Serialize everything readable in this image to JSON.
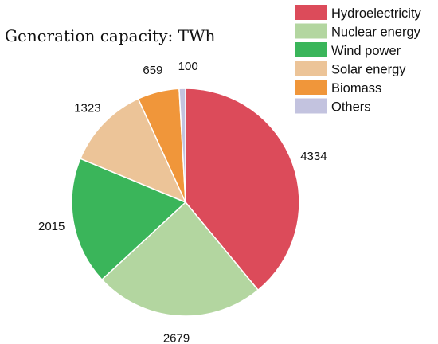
{
  "chart_data": {
    "type": "pie",
    "title": "Generation capacity: TWh",
    "slices": [
      {
        "label": "Hydroelectricity",
        "value": 4334,
        "color": "#dc4b5a"
      },
      {
        "label": "Nuclear energy",
        "value": 2679,
        "color": "#b3d6a0"
      },
      {
        "label": "Wind power",
        "value": 2015,
        "color": "#3ab55a"
      },
      {
        "label": "Solar energy",
        "value": 1323,
        "color": "#ecc498"
      },
      {
        "label": "Biomass",
        "value": 659,
        "color": "#f0963a"
      },
      {
        "label": "Others",
        "value": 100,
        "color": "#c3c3df"
      }
    ],
    "start_angle_deg": 0,
    "direction": "clockwise",
    "legend_position": "top-right"
  }
}
